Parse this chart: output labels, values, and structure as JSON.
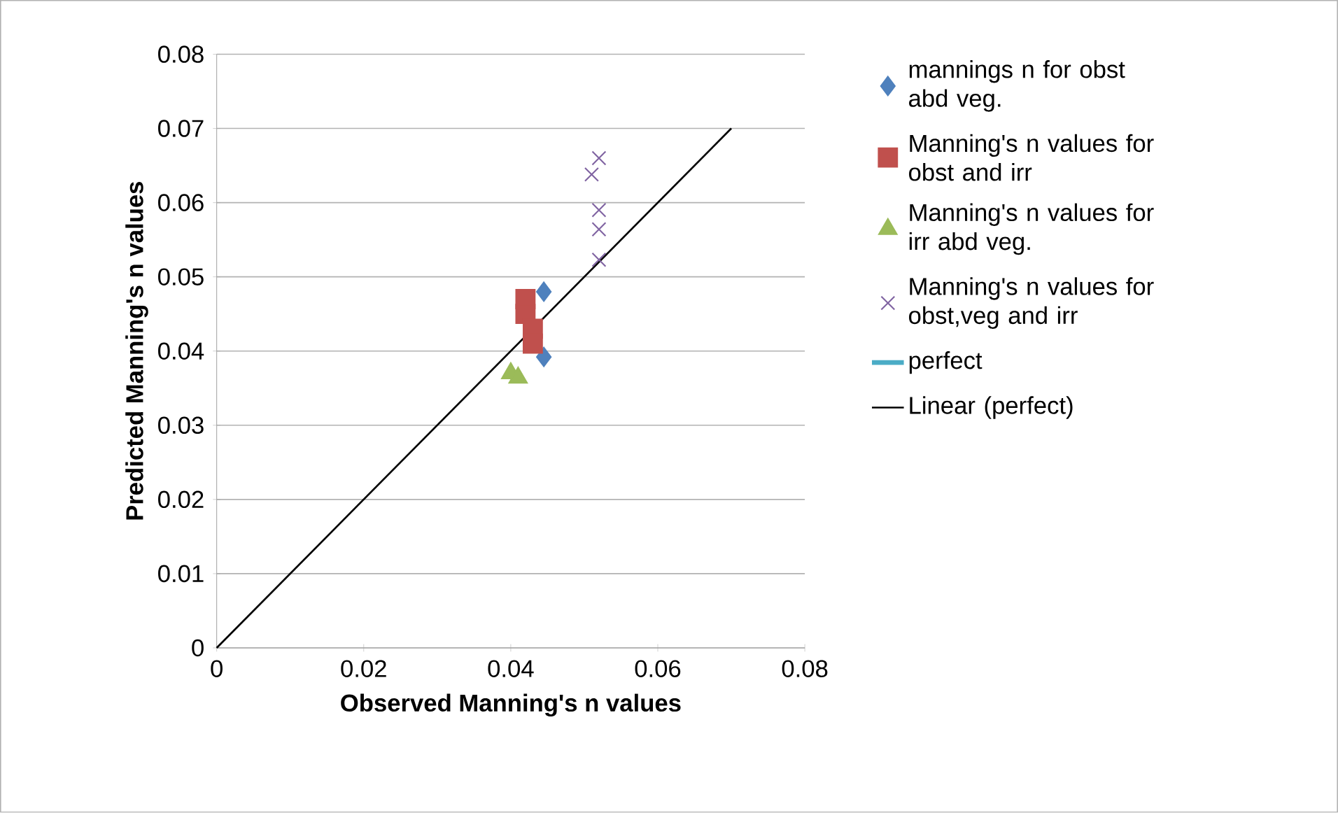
{
  "chart_data": {
    "type": "scatter",
    "xlabel": "Observed Manning's n values",
    "ylabel": "Predicted Manning's n values",
    "xlim": [
      0,
      0.08
    ],
    "ylim": [
      0,
      0.08
    ],
    "xticks": [
      0,
      0.02,
      0.04,
      0.06,
      0.08
    ],
    "yticks": [
      0,
      0.01,
      0.02,
      0.03,
      0.04,
      0.05,
      0.06,
      0.07,
      0.08
    ],
    "grid": "y",
    "legend": "right",
    "series": [
      {
        "name": "mannings n for obst abd veg.",
        "color": "#4f81bd",
        "marker": "diamond",
        "x": [
          0.0445,
          0.0445
        ],
        "values": [
          0.048,
          0.0392
        ]
      },
      {
        "name": "Manning's n values for obst and irr",
        "color": "#c0504d",
        "marker": "square",
        "x": [
          0.042,
          0.042,
          0.043,
          0.043
        ],
        "values": [
          0.047,
          0.045,
          0.043,
          0.041
        ]
      },
      {
        "name": "Manning's n values for irr abd veg.",
        "color": "#9bbb59",
        "marker": "triangle",
        "x": [
          0.04,
          0.041
        ],
        "values": [
          0.037,
          0.0364
        ]
      },
      {
        "name": "Manning's n values for obst,veg and irr",
        "color": "#8064a2",
        "marker": "cross",
        "x": [
          0.052,
          0.051,
          0.052,
          0.052,
          0.052
        ],
        "values": [
          0.066,
          0.0638,
          0.059,
          0.0564,
          0.0523
        ]
      },
      {
        "name": "perfect",
        "type": "line",
        "color": "#4bacc6",
        "marker": "none",
        "line_style": "solid"
      },
      {
        "name": "Linear (perfect)",
        "type": "line",
        "color": "#000000",
        "marker": "none",
        "line_style": "solid",
        "x": [
          0,
          0.07
        ],
        "values": [
          0,
          0.07
        ]
      }
    ]
  }
}
